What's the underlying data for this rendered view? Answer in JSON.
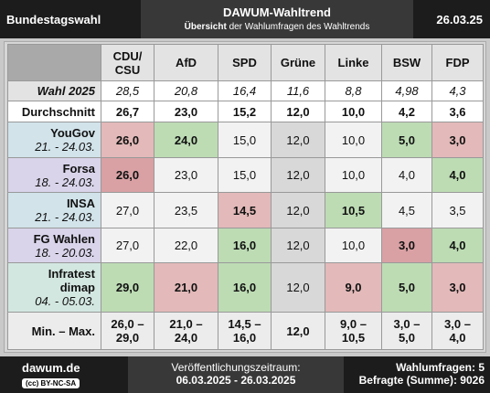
{
  "header": {
    "left": "Bundestagswahl",
    "title": "DAWUM-Wahltrend",
    "subtitle_bold": "Übersicht",
    "subtitle_rest": "der Wahlumfragen des Wahltrends",
    "date": "26.03.25"
  },
  "table": {
    "columns": [
      [
        "CDU/",
        "CSU"
      ],
      "AfD",
      "SPD",
      "Grüne",
      "Linke",
      "BSW",
      "FDP"
    ],
    "election": {
      "label": "Wahl 2025",
      "values": [
        "28,5",
        "20,8",
        "16,4",
        "11,6",
        "8,8",
        "4,98",
        "4,3"
      ]
    },
    "average": {
      "label": "Durchschnitt",
      "values": [
        "26,7",
        "23,0",
        "15,2",
        "12,0",
        "10,0",
        "4,2",
        "3,6"
      ]
    },
    "polls": [
      {
        "institute": [
          "YouGov"
        ],
        "dates": "21. - 24.03.",
        "values": [
          "26,0",
          "24,0",
          "15,0",
          "12,0",
          "10,0",
          "5,0",
          "3,0"
        ]
      },
      {
        "institute": [
          "Forsa"
        ],
        "dates": "18. - 24.03.",
        "values": [
          "26,0",
          "23,0",
          "15,0",
          "12,0",
          "10,0",
          "4,0",
          "4,0"
        ]
      },
      {
        "institute": [
          "INSA"
        ],
        "dates": "21. - 24.03.",
        "values": [
          "27,0",
          "23,5",
          "14,5",
          "12,0",
          "10,5",
          "4,5",
          "3,5"
        ]
      },
      {
        "institute": [
          "FG Wahlen"
        ],
        "dates": "18. - 20.03.",
        "values": [
          "27,0",
          "22,0",
          "16,0",
          "12,0",
          "10,0",
          "3,0",
          "4,0"
        ]
      },
      {
        "institute": [
          "Infratest",
          "dimap"
        ],
        "dates": "04. - 05.03.",
        "values": [
          "29,0",
          "21,0",
          "16,0",
          "12,0",
          "9,0",
          "5,0",
          "3,0"
        ]
      }
    ],
    "range": {
      "label": "Min. – Max.",
      "values": [
        [
          "26,0 –",
          "29,0"
        ],
        [
          "21,0 –",
          "24,0"
        ],
        [
          "14,5 –",
          "16,0"
        ],
        [
          "12,0"
        ],
        [
          "9,0 –",
          "10,5"
        ],
        [
          "3,0 –",
          "5,0"
        ],
        [
          "3,0 –",
          "4,0"
        ]
      ]
    }
  },
  "footer": {
    "site": "dawum.de",
    "license": "BY-NC-SA",
    "period_label": "Veröffentlichungszeitraum:",
    "period": "06.03.2025 - 26.03.2025",
    "polls_label": "Wahlumfragen:",
    "polls_count": "5",
    "respondents_label": "Befragte (Summe):",
    "respondents": "9026"
  }
}
